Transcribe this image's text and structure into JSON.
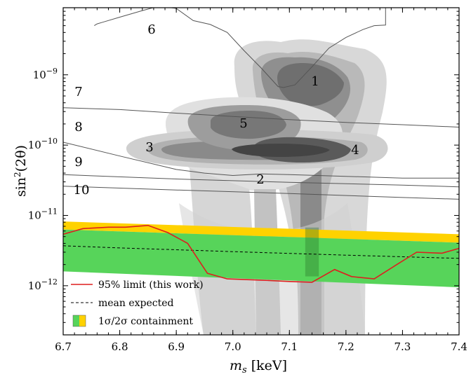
{
  "chart_data": {
    "type": "line",
    "xlabel_main": "m",
    "xlabel_sub": "s",
    "xlabel_unit": " [keV]",
    "ylabel_main": "sin",
    "ylabel_sup": "2",
    "ylabel_arg": "(2θ)",
    "xlim": [
      6.7,
      7.4
    ],
    "ylim": [
      2e-13,
      9e-09
    ],
    "yscale": "log",
    "x_ticks": [
      6.7,
      6.8,
      6.9,
      7.0,
      7.1,
      7.2,
      7.3,
      7.4
    ],
    "x_tick_labels": [
      "6.7",
      "6.8",
      "6.9",
      "7.0",
      "7.1",
      "7.2",
      "7.3",
      "7.4"
    ],
    "y_ticks": [
      {
        "base": "10",
        "exp": "−12",
        "value": 1e-12
      },
      {
        "base": "10",
        "exp": "−11",
        "value": 1e-11
      },
      {
        "base": "10",
        "exp": "−10",
        "value": 1e-10
      },
      {
        "base": "10",
        "exp": "−9",
        "value": 1e-09
      }
    ],
    "colors": {
      "limit": "#dd1f1f",
      "band_1sigma": "#57d45a",
      "band_2sigma": "#ffd200",
      "prior_line": "#555555"
    },
    "limit": {
      "name": "95% limit (this work)",
      "x": [
        6.7,
        6.735,
        6.78,
        6.81,
        6.85,
        6.885,
        6.92,
        6.955,
        6.99,
        7.05,
        7.1,
        7.14,
        7.18,
        7.21,
        7.25,
        7.29,
        7.325,
        7.37,
        7.4
      ],
      "y": [
        5.4e-12,
        6.5e-12,
        6.8e-12,
        6.8e-12,
        7.2e-12,
        5.7e-12,
        4e-12,
        1.5e-12,
        1.25e-12,
        1.2e-12,
        1.15e-12,
        1.12e-12,
        1.7e-12,
        1.35e-12,
        1.25e-12,
        2e-12,
        3e-12,
        2.9e-12,
        3.4e-12
      ]
    },
    "mean_expected": {
      "name": "mean expected",
      "x": [
        6.7,
        6.8,
        6.9,
        7.0,
        7.1,
        7.2,
        7.3,
        7.4
      ],
      "y": [
        3.7e-12,
        3.45e-12,
        3.25e-12,
        3.05e-12,
        2.88e-12,
        2.72e-12,
        2.58e-12,
        2.45e-12
      ]
    },
    "containment": {
      "name": "1σ/2σ containment",
      "x": [
        6.7,
        7.4
      ],
      "sigma2_upper": [
        8.2e-12,
        5.4e-12
      ],
      "sigma1_upper": [
        6.3e-12,
        4.1e-12
      ],
      "sigma1_lower": [
        1.6e-12,
        9.5e-13
      ]
    },
    "prior_lines": [
      {
        "label": "6",
        "x": [
          6.755,
          6.76,
          6.77,
          6.8,
          6.84,
          6.87,
          6.9,
          6.93,
          6.96,
          6.99,
          7.02,
          7.05,
          7.08,
          7.09,
          7.11,
          7.14,
          7.17,
          7.2,
          7.23,
          7.25,
          7.27,
          7.27
        ],
        "y": [
          5e-09,
          5.3e-09,
          5.6e-09,
          6.6e-09,
          8.2e-09,
          9.5e-09,
          8.8e-09,
          5.9e-09,
          5.2e-09,
          4e-09,
          2.2e-09,
          1.25e-09,
          6.8e-10,
          6.6e-10,
          7.2e-10,
          1.3e-09,
          2.4e-09,
          3.4e-09,
          4.4e-09,
          5e-09,
          5.1e-09,
          9e-09
        ]
      },
      {
        "label": "7",
        "x": [
          6.7,
          6.8,
          6.9,
          7.0,
          7.1,
          7.2,
          7.3,
          7.4
        ],
        "y": [
          3.4e-10,
          3.2e-10,
          2.85e-10,
          2.55e-10,
          2.3e-10,
          2.1e-10,
          1.95e-10,
          1.8e-10
        ]
      },
      {
        "label": "8",
        "x": [
          6.7,
          6.8,
          6.9,
          6.95,
          7.0,
          7.05,
          7.1,
          7.2,
          7.3,
          7.4
        ],
        "y": [
          1.1e-10,
          7e-11,
          4.5e-11,
          4e-11,
          3.7e-11,
          3.9e-11,
          3.8e-11,
          3.6e-11,
          3.4e-11,
          3.4e-11
        ]
      },
      {
        "label": "9",
        "x": [
          6.7,
          6.9,
          7.1,
          7.3,
          7.4
        ],
        "y": [
          3.8e-11,
          3.3e-11,
          2.95e-11,
          2.7e-11,
          2.55e-11
        ]
      },
      {
        "label": "10",
        "x": [
          6.7,
          6.9,
          7.1,
          7.3,
          7.4
        ],
        "y": [
          2.6e-11,
          2.3e-11,
          2.05e-11,
          1.8e-11,
          1.7e-11
        ]
      }
    ],
    "contour_labels": [
      "1",
      "2",
      "3",
      "4",
      "5"
    ],
    "legend": {
      "items": [
        "95% limit (this work)",
        "mean expected",
        "1σ/2σ containment"
      ],
      "position": "lower-left"
    },
    "grid": false
  }
}
